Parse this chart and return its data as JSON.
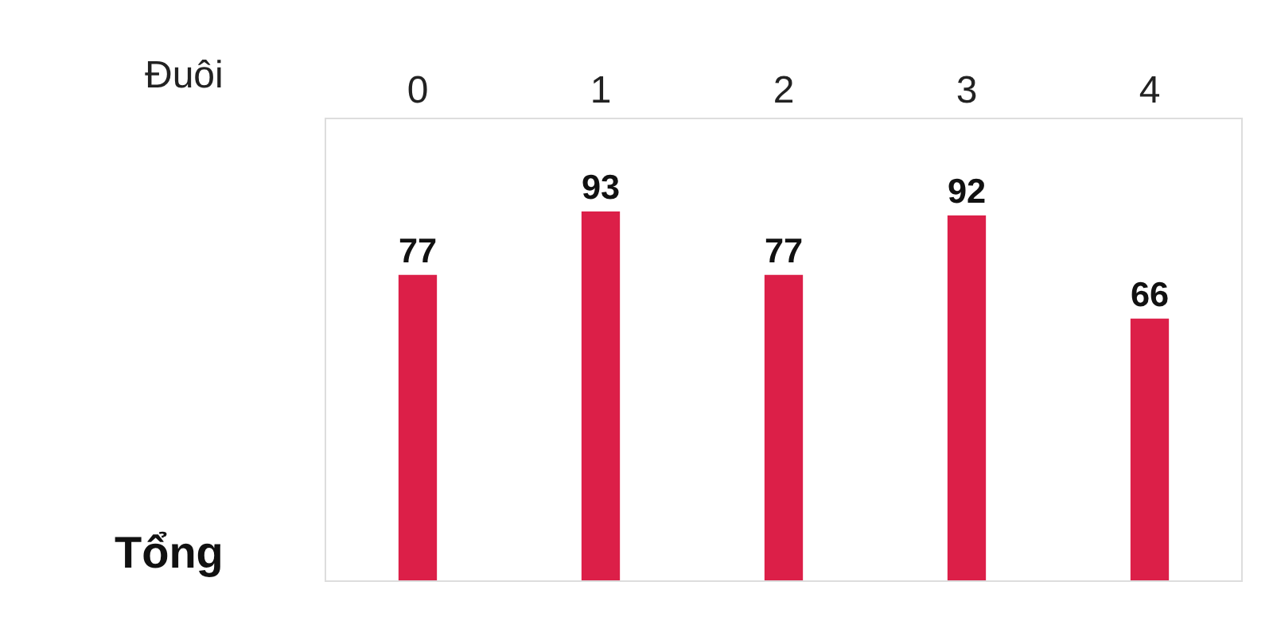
{
  "chart_data": {
    "type": "bar",
    "xlabel": "Đuôi",
    "ylabel": "Tổng",
    "categories": [
      "0",
      "1",
      "2",
      "3",
      "4"
    ],
    "values": [
      77,
      93,
      77,
      92,
      66
    ],
    "color": "#dc1f48",
    "data_labels": true
  }
}
